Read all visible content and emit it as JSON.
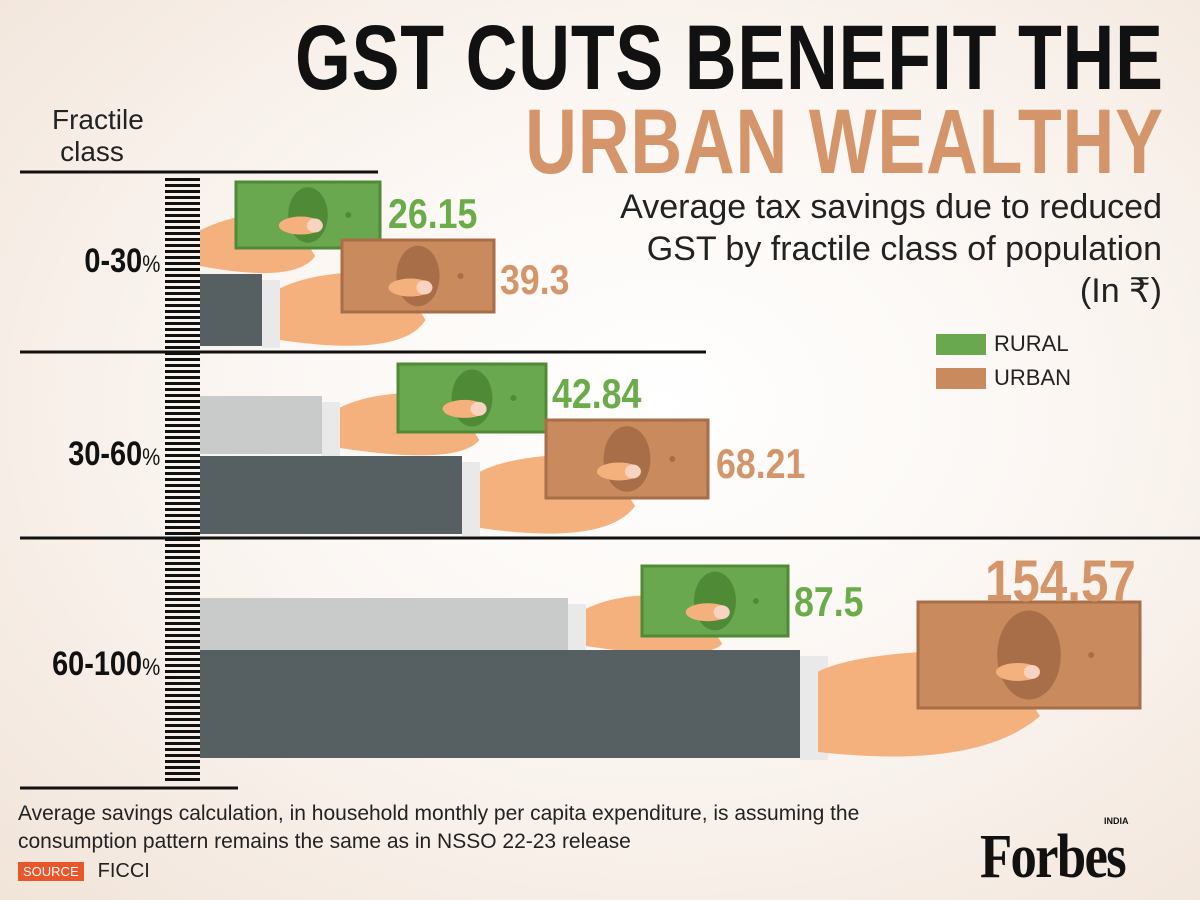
{
  "title_line1": "GST CUTS BENEFIT THE",
  "title_line2": "URBAN WEALTHY",
  "subtitle": "Average tax savings due to reduced GST by fractile class of population (In ₹)",
  "legend": [
    {
      "label": "RURAL",
      "color": "#6aa84f"
    },
    {
      "label": "URBAN",
      "color": "#c98a5e"
    }
  ],
  "axis_label": "Fractile class",
  "chart_data": {
    "type": "bar",
    "orientation": "horizontal",
    "categories": [
      "0-30",
      "30-60",
      "60-100"
    ],
    "category_unit": "%",
    "series": [
      {
        "name": "RURAL",
        "color": "#6aa84f",
        "label_color": "#6aab4a",
        "values": [
          26.15,
          42.84,
          87.5
        ]
      },
      {
        "name": "URBAN",
        "color": "#c98a5e",
        "label_color": "#d4956a",
        "values": [
          39.3,
          68.21,
          154.57
        ]
      }
    ],
    "title": "GST CUTS BENEFIT THE URBAN WEALTHY",
    "subtitle": "Average tax savings due to reduced GST by fractile class of population (In ₹)",
    "ylabel": "Fractile class",
    "legend_position": "right"
  },
  "note": "Average savings calculation, in household monthly per capita expenditure, is assuming the consumption pattern remains the same as in NSSO 22-23 release",
  "source_label": "SOURCE",
  "source": "FICCI",
  "logo": "Forbes INDIA"
}
